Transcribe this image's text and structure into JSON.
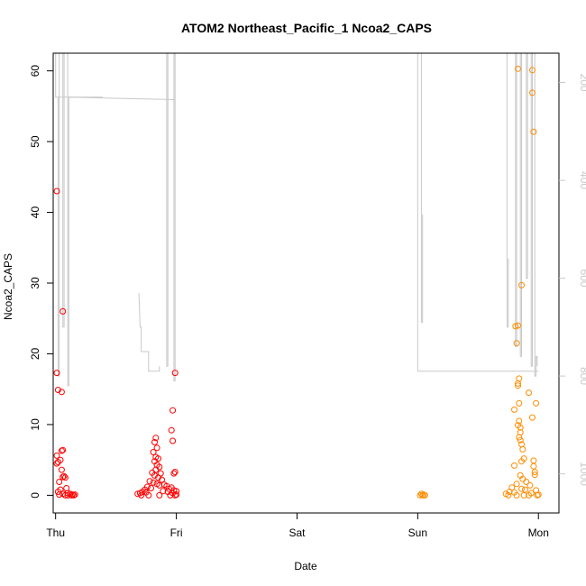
{
  "chart_data": {
    "type": "scatter",
    "title": "ATOM2 Northeast_Pacific_1 Ncoa2_CAPS",
    "xlabel": "Date",
    "ylabel": "Ncoa2_CAPS",
    "x_ticks": [
      "Thu",
      "Fri",
      "Sat",
      "Sun",
      "Mon"
    ],
    "xlim": [
      -0.02,
      4.17
    ],
    "ylim": [
      -2.5,
      62.5
    ],
    "y_ticks": [
      0,
      10,
      20,
      30,
      40,
      50,
      60
    ],
    "y2_ticks": [
      200,
      400,
      600,
      800,
      1000
    ],
    "y2lim": [
      1080,
      140
    ],
    "colors": {
      "series_a": "#ff0000",
      "series_b": "#ff8c00",
      "depth_line": "#c8c8c8"
    },
    "series": [
      {
        "color": "#ff0000",
        "points": [
          [
            0.01,
            43.0
          ],
          [
            0.01,
            17.3
          ],
          [
            0.02,
            14.9
          ],
          [
            0.05,
            14.6
          ],
          [
            0.06,
            26.0
          ],
          [
            0.01,
            5.6
          ],
          [
            0.02,
            4.7
          ],
          [
            0.01,
            4.5
          ],
          [
            0.04,
            5.0
          ],
          [
            0.05,
            6.3
          ],
          [
            0.06,
            6.4
          ],
          [
            0.05,
            3.6
          ],
          [
            0.06,
            2.6
          ],
          [
            0.07,
            2.7
          ],
          [
            0.08,
            2.5
          ],
          [
            0.03,
            1.9
          ],
          [
            0.09,
            1.0
          ],
          [
            0.02,
            0.5
          ],
          [
            0.04,
            0.8
          ],
          [
            0.1,
            0.3
          ],
          [
            0.12,
            0.2
          ],
          [
            0.14,
            0.1
          ],
          [
            0.16,
            0.1
          ],
          [
            0.03,
            0.1
          ],
          [
            0.06,
            0.2
          ],
          [
            0.08,
            0.0
          ],
          [
            0.1,
            0.0
          ],
          [
            0.13,
            0.0
          ],
          [
            0.15,
            0.0
          ],
          [
            0.99,
            17.3
          ],
          [
            0.97,
            12.0
          ],
          [
            0.96,
            9.2
          ],
          [
            0.97,
            7.7
          ],
          [
            0.98,
            3.1
          ],
          [
            0.99,
            3.3
          ],
          [
            0.83,
            8.1
          ],
          [
            0.82,
            7.5
          ],
          [
            0.84,
            6.7
          ],
          [
            0.81,
            6.1
          ],
          [
            0.83,
            5.4
          ],
          [
            0.85,
            5.2
          ],
          [
            0.82,
            4.8
          ],
          [
            0.84,
            4.3
          ],
          [
            0.86,
            4.0
          ],
          [
            0.83,
            3.6
          ],
          [
            0.87,
            3.1
          ],
          [
            0.8,
            3.2
          ],
          [
            0.82,
            2.8
          ],
          [
            0.85,
            2.5
          ],
          [
            0.88,
            2.2
          ],
          [
            0.78,
            2.0
          ],
          [
            0.81,
            1.8
          ],
          [
            0.84,
            1.6
          ],
          [
            0.86,
            1.4
          ],
          [
            0.9,
            1.5
          ],
          [
            0.92,
            1.3
          ],
          [
            0.76,
            1.2
          ],
          [
            0.79,
            1.0
          ],
          [
            0.74,
            0.8
          ],
          [
            0.94,
            0.9
          ],
          [
            0.96,
            1.1
          ],
          [
            0.98,
            0.7
          ],
          [
            1.0,
            0.6
          ],
          [
            0.72,
            0.5
          ],
          [
            0.7,
            0.3
          ],
          [
            0.68,
            0.2
          ],
          [
            0.75,
            0.4
          ],
          [
            0.89,
            0.6
          ],
          [
            0.93,
            0.5
          ],
          [
            0.97,
            0.3
          ],
          [
            1.0,
            0.1
          ],
          [
            0.71,
            0.0
          ],
          [
            0.77,
            0.0
          ],
          [
            0.86,
            0.0
          ],
          [
            0.95,
            0.0
          ],
          [
            0.99,
            0.0
          ]
        ]
      },
      {
        "color": "#ff8c00",
        "points": [
          [
            3.03,
            0.2
          ],
          [
            3.04,
            0.0
          ],
          [
            3.05,
            0.1
          ],
          [
            3.06,
            0.0
          ],
          [
            3.02,
            0.0
          ],
          [
            3.83,
            60.3
          ],
          [
            3.95,
            60.1
          ],
          [
            3.95,
            56.9
          ],
          [
            3.96,
            51.4
          ],
          [
            3.86,
            29.7
          ],
          [
            3.81,
            23.9
          ],
          [
            3.83,
            24.0
          ],
          [
            3.82,
            21.5
          ],
          [
            3.84,
            16.5
          ],
          [
            3.83,
            15.8
          ],
          [
            3.83,
            15.5
          ],
          [
            3.92,
            14.5
          ],
          [
            3.84,
            13.0
          ],
          [
            3.98,
            13.0
          ],
          [
            3.8,
            12.1
          ],
          [
            3.95,
            11.0
          ],
          [
            3.84,
            10.5
          ],
          [
            3.83,
            9.9
          ],
          [
            3.85,
            9.6
          ],
          [
            3.85,
            8.9
          ],
          [
            3.84,
            8.2
          ],
          [
            3.85,
            7.8
          ],
          [
            3.86,
            7.2
          ],
          [
            3.87,
            6.5
          ],
          [
            3.88,
            5.2
          ],
          [
            3.86,
            4.8
          ],
          [
            3.8,
            4.2
          ],
          [
            3.96,
            4.9
          ],
          [
            3.96,
            4.1
          ],
          [
            3.97,
            3.3
          ],
          [
            3.97,
            2.9
          ],
          [
            3.85,
            2.8
          ],
          [
            3.87,
            2.3
          ],
          [
            3.9,
            1.9
          ],
          [
            3.82,
            1.6
          ],
          [
            3.93,
            1.4
          ],
          [
            3.78,
            1.1
          ],
          [
            3.86,
            0.9
          ],
          [
            3.89,
            0.8
          ],
          [
            3.98,
            0.7
          ],
          [
            3.76,
            0.5
          ],
          [
            3.8,
            0.4
          ],
          [
            3.94,
            0.3
          ],
          [
            3.73,
            0.2
          ],
          [
            4.0,
            0.1
          ],
          [
            3.75,
            0.0
          ],
          [
            3.82,
            0.0
          ],
          [
            3.88,
            0.0
          ],
          [
            3.92,
            0.0
          ],
          [
            3.99,
            0.0
          ]
        ]
      }
    ],
    "depth_line": [
      [
        [
          0.0,
          140
        ],
        [
          0.0,
          230
        ],
        [
          0.39,
          230
        ],
        [
          0.02,
          230
        ],
        [
          0.02,
          800
        ],
        [
          0.03,
          800
        ],
        [
          0.03,
          140
        ]
      ],
      [
        [
          0.06,
          140
        ],
        [
          0.06,
          700
        ],
        [
          0.07,
          700
        ],
        [
          0.07,
          140
        ]
      ],
      [
        [
          0.1,
          140
        ],
        [
          0.1,
          820
        ],
        [
          0.11,
          820
        ],
        [
          0.11,
          230
        ],
        [
          0.99,
          235
        ]
      ],
      [
        [
          0.69,
          630
        ],
        [
          0.7,
          700
        ],
        [
          0.71,
          700
        ],
        [
          0.71,
          750
        ],
        [
          0.77,
          750
        ],
        [
          0.77,
          790
        ],
        [
          0.86,
          790
        ],
        [
          0.86,
          780
        ]
      ],
      [
        [
          0.92,
          140
        ],
        [
          0.92,
          780
        ],
        [
          0.93,
          780
        ],
        [
          0.93,
          140
        ]
      ],
      [
        [
          0.98,
          140
        ],
        [
          0.98,
          810
        ],
        [
          0.99,
          810
        ],
        [
          0.99,
          140
        ]
      ],
      [
        [
          3.0,
          140
        ],
        [
          3.0,
          790
        ],
        [
          3.05,
          790
        ],
        [
          3.05,
          790
        ]
      ],
      [
        [
          3.03,
          140
        ],
        [
          3.03,
          690
        ],
        [
          3.04,
          690
        ],
        [
          3.04,
          470
        ]
      ],
      [
        [
          3.05,
          790
        ],
        [
          4.0,
          790
        ]
      ],
      [
        [
          3.74,
          140
        ],
        [
          3.74,
          700
        ],
        [
          3.75,
          700
        ],
        [
          3.75,
          560
        ]
      ],
      [
        [
          3.81,
          140
        ],
        [
          3.81,
          740
        ],
        [
          3.82,
          740
        ],
        [
          3.82,
          140
        ]
      ],
      [
        [
          3.85,
          140
        ],
        [
          3.85,
          760
        ],
        [
          3.86,
          760
        ],
        [
          3.86,
          140
        ]
      ],
      [
        [
          3.9,
          140
        ],
        [
          3.9,
          600
        ],
        [
          3.91,
          600
        ],
        [
          3.91,
          140
        ]
      ],
      [
        [
          3.94,
          140
        ],
        [
          3.94,
          780
        ],
        [
          3.95,
          780
        ],
        [
          3.95,
          140
        ]
      ],
      [
        [
          3.97,
          140
        ],
        [
          3.97,
          800
        ],
        [
          3.98,
          800
        ],
        [
          3.98,
          760
        ],
        [
          3.99,
          760
        ],
        [
          3.99,
          780
        ]
      ]
    ]
  }
}
